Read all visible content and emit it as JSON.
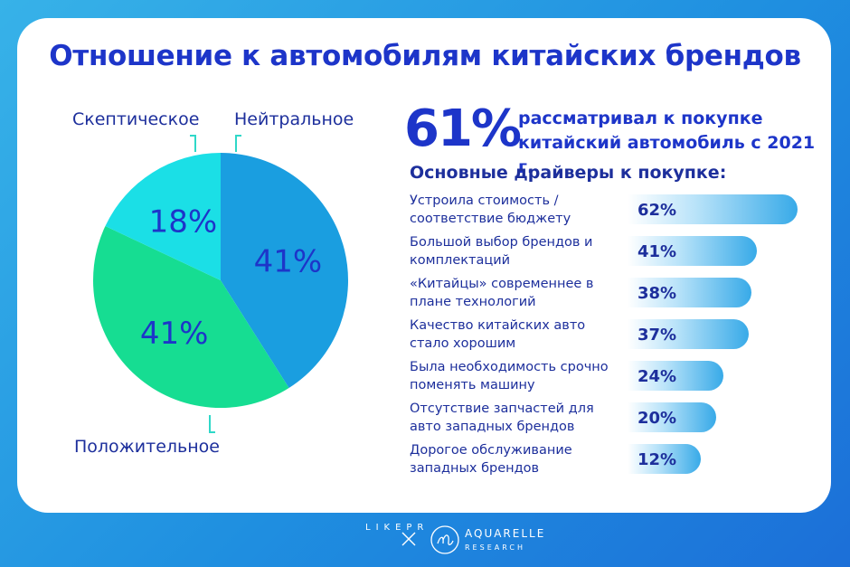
{
  "title": "Отношение к автомобилям китайских брендов",
  "chart_data": [
    {
      "type": "pie",
      "title": "",
      "slices": [
        {
          "label": "Нейтральное",
          "value": 41,
          "display": "41%",
          "color": "#1a9ee0"
        },
        {
          "label": "Положительное",
          "value": 41,
          "display": "41%",
          "color": "#16dd92"
        },
        {
          "label": "Скептическое",
          "value": 18,
          "display": "18%",
          "color": "#1bdfe6"
        }
      ]
    },
    {
      "type": "bar",
      "title": "Основные драйверы к покупке:",
      "unit": "%",
      "categories": [
        "Устроила стоимость / соответствие бюджету",
        "Большой выбор брендов и комплектаций",
        "«Китайцы» современнее в плане технологий",
        "Качество китайских авто стало хорошим",
        "Была необходимость срочно поменять машину",
        "Отсутствие запчастей для авто западных брендов",
        "Дорогое обслуживание западных брендов"
      ],
      "values": [
        62,
        41,
        38,
        37,
        24,
        20,
        12
      ],
      "display": [
        "62%",
        "41%",
        "38%",
        "37%",
        "24%",
        "20%",
        "12%"
      ],
      "xlim": [
        0,
        62
      ]
    }
  ],
  "headline": {
    "percent": "61%",
    "text": "рассматривал к покупке китайский автомобиль с 2021 г."
  },
  "footer": {
    "agency": "LIKEPR",
    "separator": "×",
    "partner": "AQUARELLE",
    "partner_sub": "RESEARCH"
  },
  "colors": {
    "title": "#1d35c9",
    "text": "#1d2f9c",
    "background": "#2a9ee4"
  }
}
